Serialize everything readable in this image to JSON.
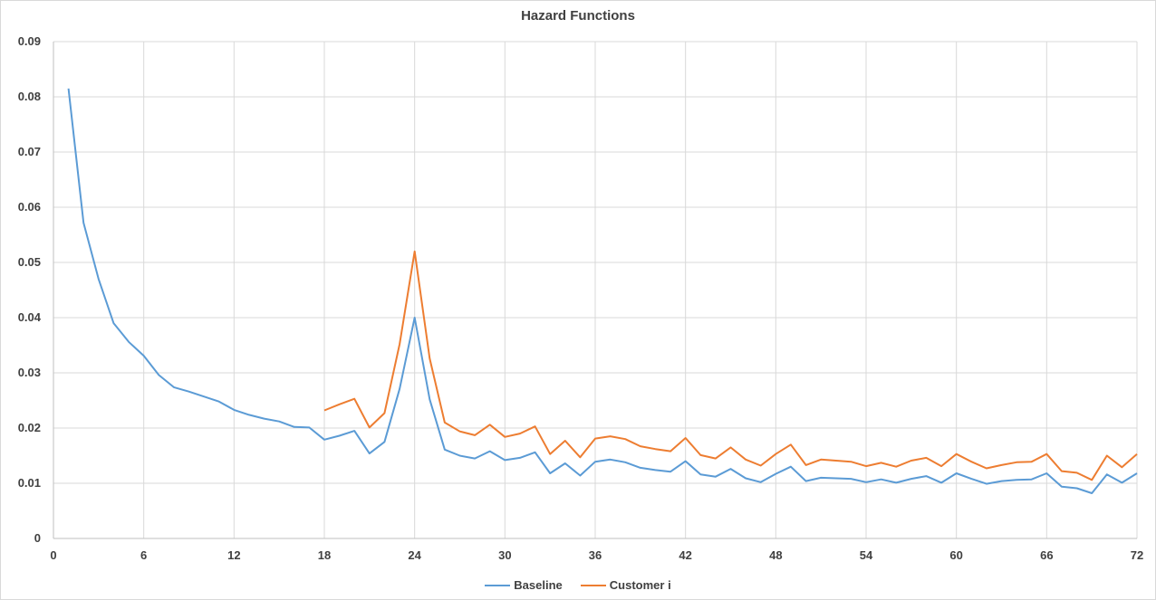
{
  "chart_data": {
    "type": "line",
    "title": "Hazard Functions",
    "xlabel": "",
    "ylabel": "",
    "xlim": [
      0,
      72
    ],
    "ylim": [
      0,
      0.09
    ],
    "x_ticks": [
      "0",
      "6",
      "12",
      "18",
      "24",
      "30",
      "36",
      "42",
      "48",
      "54",
      "60",
      "66",
      "72"
    ],
    "y_ticks": [
      "0",
      "0.01",
      "0.02",
      "0.03",
      "0.04",
      "0.05",
      "0.06",
      "0.07",
      "0.08",
      "0.09"
    ],
    "grid": true,
    "legend_position": "bottom",
    "series": [
      {
        "name": "Baseline",
        "color": "#5b9bd5",
        "x": [
          1,
          2,
          3,
          4,
          5,
          6,
          7,
          8,
          9,
          10,
          11,
          12,
          13,
          14,
          15,
          16,
          17,
          18,
          19,
          20,
          21,
          22,
          23,
          24,
          25,
          26,
          27,
          28,
          29,
          30,
          31,
          32,
          33,
          34,
          35,
          36,
          37,
          38,
          39,
          40,
          41,
          42,
          43,
          44,
          45,
          46,
          47,
          48,
          49,
          50,
          51,
          52,
          53,
          54,
          55,
          56,
          57,
          58,
          59,
          60,
          61,
          62,
          63,
          64,
          65,
          66,
          67,
          68,
          69,
          70,
          71,
          72
        ],
        "values": [
          0.0815,
          0.0572,
          0.047,
          0.039,
          0.0356,
          0.0331,
          0.0296,
          0.0274,
          0.0266,
          0.0257,
          0.0248,
          0.0233,
          0.0224,
          0.0217,
          0.0212,
          0.0202,
          0.0201,
          0.0179,
          0.0186,
          0.0195,
          0.0154,
          0.0175,
          0.0271,
          0.04,
          0.0252,
          0.0161,
          0.015,
          0.0145,
          0.0158,
          0.0142,
          0.0146,
          0.0156,
          0.0118,
          0.0136,
          0.0114,
          0.0139,
          0.0143,
          0.0138,
          0.0128,
          0.0124,
          0.0121,
          0.014,
          0.0116,
          0.0112,
          0.0126,
          0.0109,
          0.0102,
          0.0117,
          0.013,
          0.0104,
          0.011,
          0.0109,
          0.0108,
          0.0102,
          0.0107,
          0.0101,
          0.0108,
          0.0113,
          0.0101,
          0.0118,
          0.0108,
          0.0099,
          0.0104,
          0.0106,
          0.0107,
          0.0118,
          0.0094,
          0.0091,
          0.0082,
          0.0116,
          0.0101,
          0.0118
        ]
      },
      {
        "name": "Customer i",
        "color": "#ed7d31",
        "x": [
          18,
          19,
          20,
          21,
          22,
          23,
          24,
          25,
          26,
          27,
          28,
          29,
          30,
          31,
          32,
          33,
          34,
          35,
          36,
          37,
          38,
          39,
          40,
          41,
          42,
          43,
          44,
          45,
          46,
          47,
          48,
          49,
          50,
          51,
          52,
          53,
          54,
          55,
          56,
          57,
          58,
          59,
          60,
          61,
          62,
          63,
          64,
          65,
          66,
          67,
          68,
          69,
          70,
          71,
          72
        ],
        "values": [
          0.0232,
          0.0243,
          0.0253,
          0.0201,
          0.0227,
          0.0352,
          0.052,
          0.0326,
          0.021,
          0.0194,
          0.0187,
          0.0206,
          0.0184,
          0.019,
          0.0203,
          0.0153,
          0.0177,
          0.0147,
          0.0181,
          0.0185,
          0.018,
          0.0167,
          0.0162,
          0.0158,
          0.0182,
          0.0151,
          0.0145,
          0.0165,
          0.0143,
          0.0132,
          0.0153,
          0.017,
          0.0133,
          0.0143,
          0.0141,
          0.0139,
          0.0131,
          0.0137,
          0.013,
          0.0141,
          0.0146,
          0.0131,
          0.0153,
          0.0139,
          0.0127,
          0.0133,
          0.0138,
          0.0139,
          0.0153,
          0.0122,
          0.0119,
          0.0106,
          0.015,
          0.0129,
          0.0153
        ]
      }
    ]
  }
}
